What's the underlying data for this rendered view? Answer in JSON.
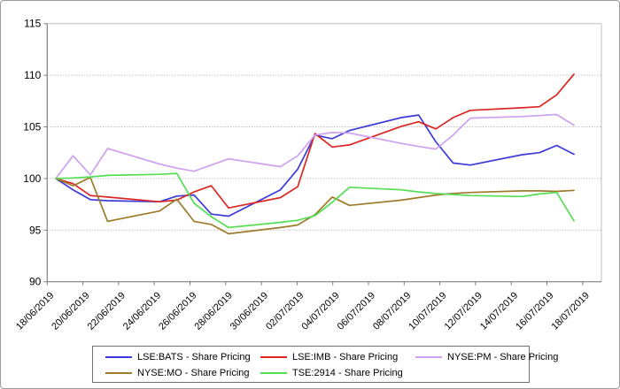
{
  "chart_data": {
    "type": "line",
    "title": "",
    "xlabel": "",
    "ylabel": "",
    "ylim": [
      90,
      115
    ],
    "y_ticks": [
      90,
      95,
      100,
      105,
      110,
      115
    ],
    "grid": "horizontal-dotted",
    "legend_position": "bottom",
    "x_span_days": 31,
    "x_tick_labels": [
      "18/06/2019",
      "20/06/2019",
      "22/06/2019",
      "24/06/2019",
      "26/06/2019",
      "28/06/2019",
      "30/06/2019",
      "02/07/2019",
      "04/07/2019",
      "06/07/2019",
      "08/07/2019",
      "10/07/2019",
      "12/07/2019",
      "14/07/2019",
      "16/07/2019",
      "18/07/2019"
    ],
    "day_offsets": [
      0,
      1,
      2,
      3,
      6,
      7,
      8,
      9,
      10,
      13,
      14,
      15,
      16,
      17,
      20,
      21,
      22,
      23,
      24,
      27,
      28,
      29,
      30
    ],
    "series": [
      {
        "name": "LSE:BATS - Share Pricing",
        "color": "#3A3ADB",
        "values": [
          100,
          98.9,
          97.95,
          97.85,
          97.75,
          98.3,
          98.4,
          96.55,
          96.35,
          98.9,
          100.9,
          104.2,
          103.85,
          104.65,
          105.9,
          106.15,
          103.55,
          101.5,
          101.3,
          102.3,
          102.5,
          103.2,
          102.35
        ]
      },
      {
        "name": "LSE:IMB - Share Pricing",
        "color": "#DB2623",
        "values": [
          100,
          99.5,
          98.35,
          98.2,
          97.75,
          97.9,
          98.7,
          99.3,
          97.15,
          98.15,
          99.2,
          104.35,
          103.05,
          103.25,
          105.05,
          105.5,
          104.8,
          105.9,
          106.6,
          106.85,
          106.95,
          108.1,
          110.1
        ]
      },
      {
        "name": "NYSE:PM - Share Pricing",
        "color": "#CDA1F0",
        "values": [
          100,
          102.2,
          100.35,
          102.9,
          101.4,
          101.0,
          100.7,
          101.3,
          101.9,
          101.15,
          102.2,
          104.2,
          104.45,
          104.4,
          103.4,
          103.1,
          102.85,
          104.2,
          105.85,
          106.0,
          106.1,
          106.2,
          105.15
        ]
      },
      {
        "name": "NYSE:MO - Share Pricing",
        "color": "#9E7A2B",
        "values": [
          100,
          99.3,
          100.1,
          95.85,
          96.85,
          98.0,
          95.85,
          95.55,
          94.65,
          95.25,
          95.5,
          96.5,
          98.2,
          97.4,
          97.9,
          98.15,
          98.4,
          98.55,
          98.65,
          98.8,
          98.8,
          98.75,
          98.85
        ]
      },
      {
        "name": "TSE:2914 - Share Pricing",
        "color": "#53DE53",
        "values": [
          100,
          100.05,
          100.15,
          100.3,
          100.4,
          100.5,
          97.6,
          96.3,
          95.25,
          95.75,
          95.95,
          96.4,
          97.7,
          99.15,
          98.9,
          98.7,
          98.55,
          98.45,
          98.35,
          98.25,
          98.5,
          98.65,
          95.9
        ]
      }
    ]
  }
}
